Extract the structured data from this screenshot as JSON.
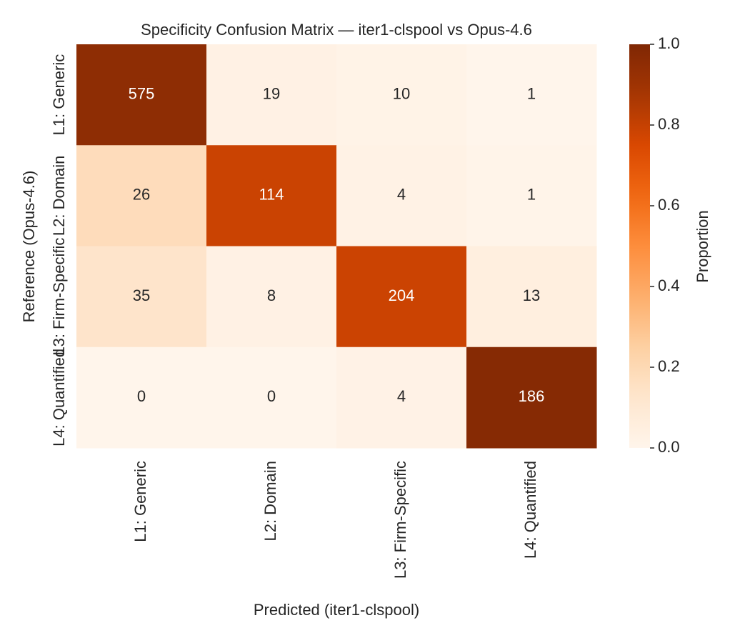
{
  "chart_data": {
    "type": "heatmap",
    "title": "Specificity Confusion Matrix — iter1-clspool vs Opus-4.6",
    "x_label": "Predicted (iter1-clspool)",
    "y_label": "Reference (Opus-4.6)",
    "x_categories": [
      "L1: Generic",
      "L2: Domain",
      "L3: Firm-Specific",
      "L4: Quantified"
    ],
    "y_categories": [
      "L1: Generic",
      "L2: Domain",
      "L3: Firm-Specific",
      "L4: Quantified"
    ],
    "values": [
      [
        575,
        19,
        10,
        1
      ],
      [
        26,
        114,
        4,
        1
      ],
      [
        35,
        8,
        204,
        13
      ],
      [
        0,
        0,
        4,
        186
      ]
    ],
    "normalize": "row",
    "colormap": [
      "#fff5eb",
      "#fee6ce",
      "#fdd0a2",
      "#fdae6b",
      "#fd8d3c",
      "#f16913",
      "#d94801",
      "#a63603",
      "#7f2704"
    ],
    "colorbar": {
      "label": "Proportion",
      "lim": [
        0,
        1
      ],
      "ticks": [
        {
          "value": 0,
          "label": "0.0"
        },
        0.2,
        0.4,
        0.6,
        0.8,
        {
          "value": 1,
          "label": "1.0"
        }
      ]
    }
  }
}
